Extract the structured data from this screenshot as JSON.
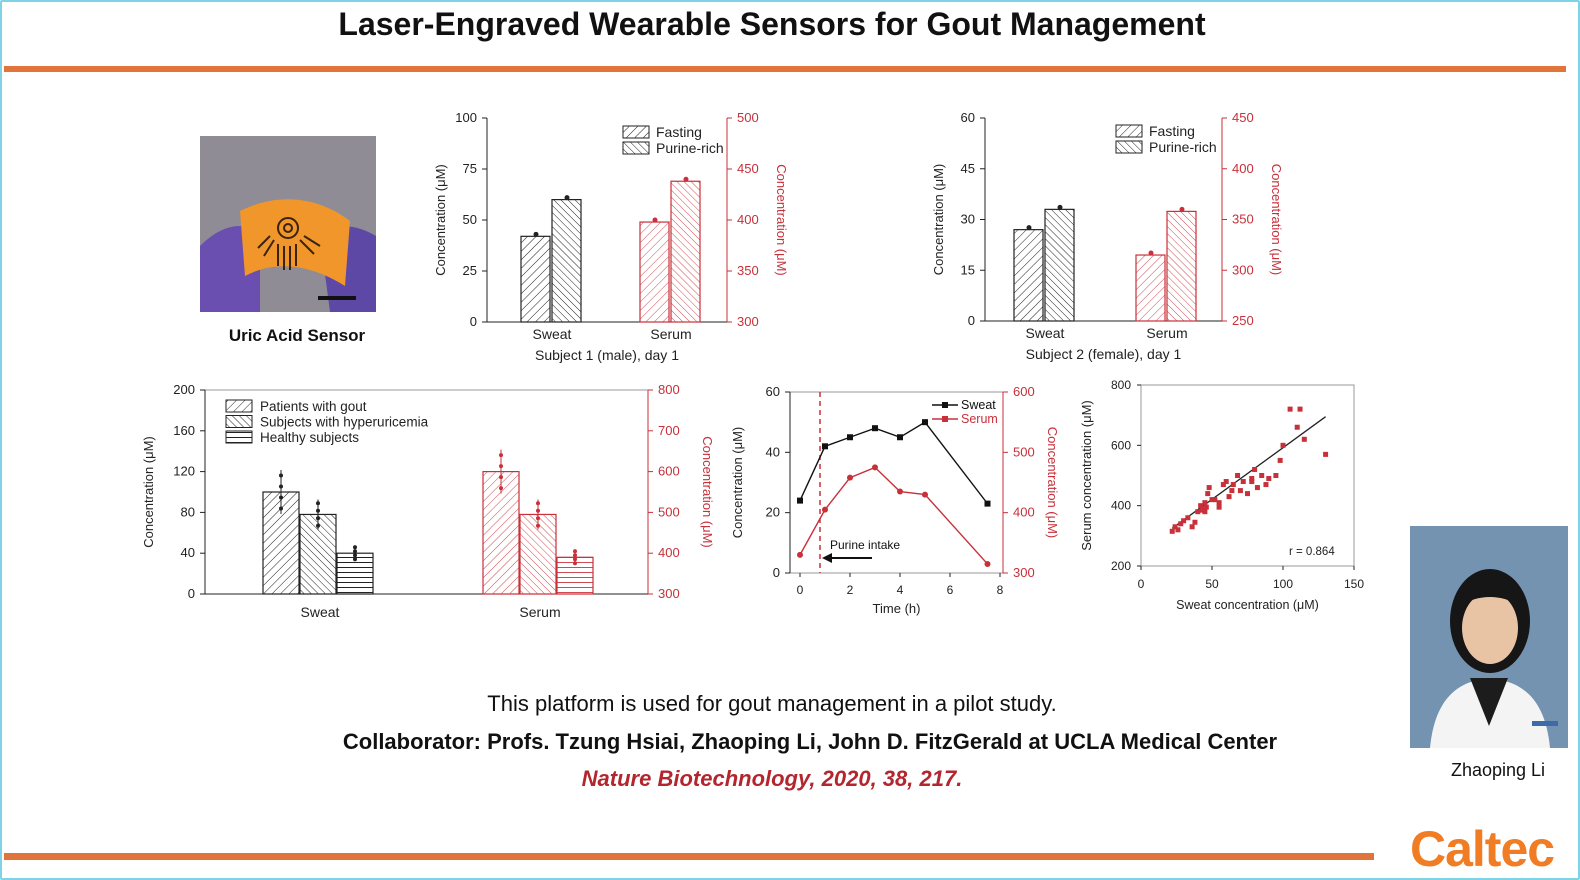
{
  "slide": {
    "title": "Laser-Engraved Wearable Sensors for Gout Management",
    "caption": "This platform is used for gout management in a pilot study.",
    "collaborator": "Collaborator: Profs. Tzung Hsiai, Zhaoping Li, John D. FitzGerald at UCLA Medical Center",
    "citation": "Nature Biotechnology, 2020, 38, 217.",
    "sensor_label": "Uric Acid Sensor",
    "speaker_name": "Zhaoping Li",
    "logo_text": "Caltec",
    "accent_color": "#e0743a",
    "serum_color": "#c8303a"
  },
  "chart_data": [
    {
      "type": "bar",
      "xlabel": "Subject 1 (male), day 1",
      "ylabel": "Concentration (μM)",
      "y2label": "Concentration (μM)",
      "categories": [
        "Sweat",
        "Serum"
      ],
      "legend": [
        "Fasting",
        "Purine-rich"
      ],
      "yticks": [
        "0",
        "25",
        "50",
        "75",
        "100"
      ],
      "y2ticks": [
        "300",
        "350",
        "400",
        "450",
        "500"
      ],
      "ylim": [
        0,
        100
      ],
      "y2lim": [
        300,
        500
      ],
      "series": [
        {
          "name": "Fasting",
          "values": [
            42,
            398
          ]
        },
        {
          "name": "Purine-rich",
          "values": [
            60,
            438
          ]
        }
      ]
    },
    {
      "type": "bar",
      "xlabel": "Subject 2 (female), day 1",
      "ylabel": "Concentration (μM)",
      "y2label": "Concentration (μM)",
      "categories": [
        "Sweat",
        "Serum"
      ],
      "legend": [
        "Fasting",
        "Purine-rich"
      ],
      "yticks": [
        "0",
        "15",
        "30",
        "45",
        "60"
      ],
      "y2ticks": [
        "250",
        "300",
        "350",
        "400",
        "450"
      ],
      "ylim": [
        0,
        60
      ],
      "y2lim": [
        250,
        450
      ],
      "series": [
        {
          "name": "Fasting",
          "values": [
            27,
            315
          ]
        },
        {
          "name": "Purine-rich",
          "values": [
            33,
            358
          ]
        }
      ]
    },
    {
      "type": "bar",
      "ylabel": "Concentration (μM)",
      "y2label": "Concentration (μM)",
      "categories": [
        "Sweat",
        "Serum"
      ],
      "legend": [
        "Patients with gout",
        "Subjects with hyperuricemia",
        "Healthy subjects"
      ],
      "yticks": [
        "0",
        "40",
        "80",
        "120",
        "160",
        "200"
      ],
      "y2ticks": [
        "300",
        "400",
        "500",
        "600",
        "700",
        "800"
      ],
      "ylim": [
        0,
        200
      ],
      "y2lim": [
        300,
        800
      ],
      "series": [
        {
          "name": "Patients with gout",
          "values": [
            100,
            600
          ]
        },
        {
          "name": "Subjects with hyperuricemia",
          "values": [
            78,
            495
          ]
        },
        {
          "name": "Healthy subjects",
          "values": [
            40,
            390
          ]
        }
      ]
    },
    {
      "type": "line",
      "xlabel": "Time (h)",
      "ylabel": "Concentration (μM)",
      "y2label": "Concentration (μM)",
      "xticks": [
        "0",
        "2",
        "4",
        "6",
        "8"
      ],
      "yticks": [
        "0",
        "20",
        "40",
        "60"
      ],
      "y2ticks": [
        "300",
        "400",
        "500",
        "600"
      ],
      "xlim": [
        0,
        8
      ],
      "ylim": [
        0,
        60
      ],
      "y2lim": [
        300,
        600
      ],
      "annotation": "Purine intake",
      "intake_time": 0.8,
      "series": [
        {
          "name": "Sweat",
          "x": [
            0,
            1,
            2,
            3,
            4,
            5,
            7.5
          ],
          "y": [
            24,
            42,
            45,
            48,
            45,
            50,
            23
          ]
        },
        {
          "name": "Serum",
          "x": [
            0,
            1,
            2,
            3,
            4,
            5,
            7.5
          ],
          "y": [
            330,
            405,
            458,
            475,
            435,
            430,
            315
          ]
        }
      ]
    },
    {
      "type": "scatter",
      "xlabel": "Sweat concentration (μM)",
      "ylabel": "Serum concentration (μM)",
      "xticks": [
        "0",
        "50",
        "100",
        "150"
      ],
      "yticks": [
        "200",
        "400",
        "600",
        "800"
      ],
      "xlim": [
        0,
        150
      ],
      "ylim": [
        200,
        800
      ],
      "annotation": "r = 0.864",
      "fit_line": {
        "x": [
          22,
          130
        ],
        "y": [
          325,
          695
        ]
      },
      "points": {
        "x": [
          22,
          24,
          26,
          28,
          30,
          33,
          36,
          38,
          40,
          42,
          43,
          44,
          45,
          46,
          47,
          48,
          50,
          52,
          55,
          58,
          60,
          62,
          65,
          68,
          70,
          72,
          75,
          78,
          80,
          82,
          85,
          88,
          90,
          95,
          98,
          100,
          105,
          110,
          112,
          115,
          130,
          45,
          55,
          64,
          78
        ],
        "y": [
          315,
          330,
          320,
          340,
          350,
          360,
          330,
          345,
          380,
          400,
          385,
          390,
          410,
          395,
          440,
          460,
          420,
          420,
          410,
          470,
          480,
          430,
          470,
          500,
          450,
          480,
          440,
          490,
          520,
          460,
          500,
          470,
          490,
          500,
          550,
          600,
          720,
          660,
          720,
          620,
          570,
          380,
          395,
          450,
          480
        ]
      }
    }
  ]
}
